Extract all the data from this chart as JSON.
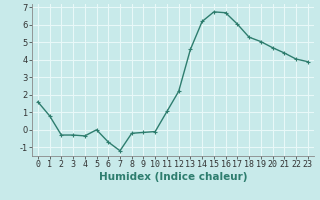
{
  "x": [
    0,
    1,
    2,
    3,
    4,
    5,
    6,
    7,
    8,
    9,
    10,
    11,
    12,
    13,
    14,
    15,
    16,
    17,
    18,
    19,
    20,
    21,
    22,
    23
  ],
  "y": [
    1.6,
    0.8,
    -0.3,
    -0.3,
    -0.35,
    0.0,
    -0.7,
    -1.2,
    -0.2,
    -0.15,
    -0.1,
    1.05,
    2.2,
    4.6,
    6.2,
    6.75,
    6.7,
    6.05,
    5.3,
    5.05,
    4.7,
    4.4,
    4.05,
    3.9
  ],
  "line_color": "#2e7d6e",
  "marker": "+",
  "marker_color": "#2e7d6e",
  "xlabel": "Humidex (Indice chaleur)",
  "ylim": [
    -1.5,
    7.2
  ],
  "xlim": [
    -0.5,
    23.5
  ],
  "yticks": [
    -1,
    0,
    1,
    2,
    3,
    4,
    5,
    6,
    7
  ],
  "xticks": [
    0,
    1,
    2,
    3,
    4,
    5,
    6,
    7,
    8,
    9,
    10,
    11,
    12,
    13,
    14,
    15,
    16,
    17,
    18,
    19,
    20,
    21,
    22,
    23
  ],
  "bg_color": "#c8eaea",
  "grid_color": "#e8f8f8",
  "border_color": "#888888",
  "text_color": "#2e7d6e",
  "xlabel_fontsize": 7.5,
  "tick_fontsize": 6,
  "line_width": 1.0,
  "marker_size": 3.5
}
